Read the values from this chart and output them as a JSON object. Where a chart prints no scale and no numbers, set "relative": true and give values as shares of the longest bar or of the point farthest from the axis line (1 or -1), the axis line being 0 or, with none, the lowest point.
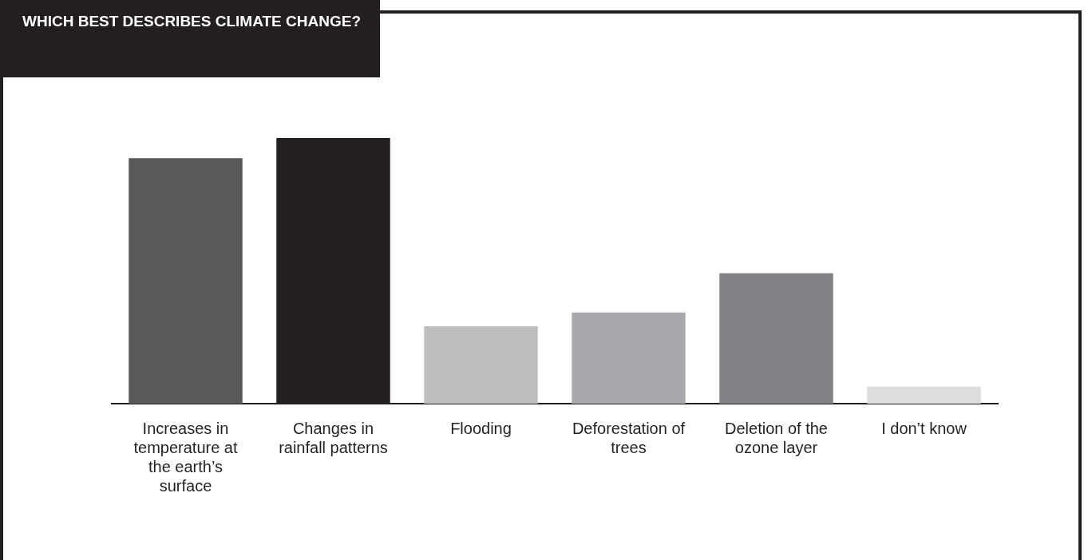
{
  "chart_data": {
    "type": "bar",
    "title": "WHICH BEST DESCRIBES CLIMATE CHANGE?",
    "relative": true,
    "categories": [
      "Increases in temperature at the earth’s surface",
      "Changes in rainfall patterns",
      "Flooding",
      "Deforestation of trees",
      "Deletion of the ozone layer",
      "I don’t know"
    ],
    "values": [
      0.924,
      1,
      0.291,
      0.343,
      0.491,
      0.064
    ],
    "colors": [
      "#58595b",
      "#231f20",
      "#bcbec0",
      "#a7a9ac",
      "#808285",
      "#dcddde"
    ]
  }
}
